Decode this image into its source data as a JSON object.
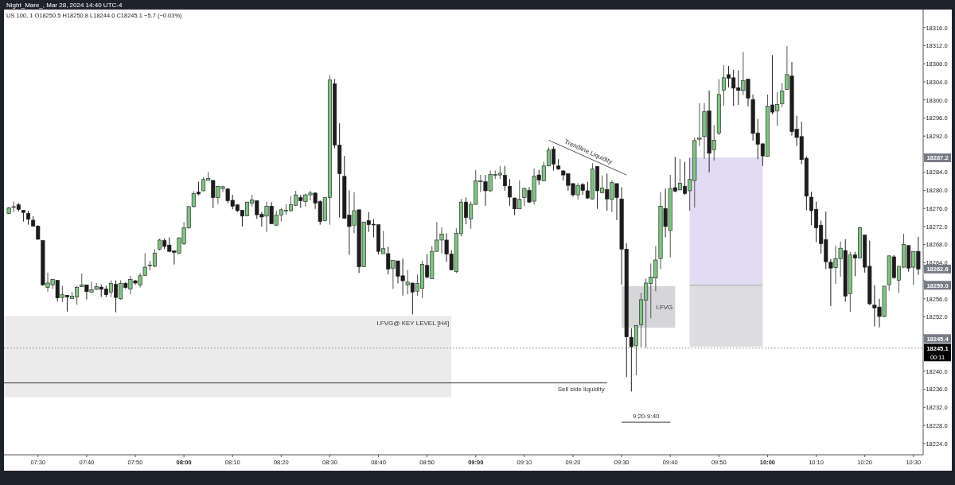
{
  "chart_data": {
    "type": "candlestick",
    "title": "Night_Mare_, Mar 28, 2024 14:40 UTC-4",
    "subtitle": "US 100, 1  O18250.5 H18250.8 L18244.0 C18245.1 −5.7 (−0.03%)",
    "x": [
      "2024-03-28T07:24",
      "2024-03-28T07:25",
      "2024-03-28T07:26",
      "2024-03-28T07:27",
      "2024-03-28T07:28",
      "2024-03-28T07:29",
      "2024-03-28T07:30",
      "2024-03-28T07:31",
      "2024-03-28T07:32",
      "2024-03-28T07:33",
      "2024-03-28T07:34",
      "2024-03-28T07:35",
      "2024-03-28T07:36",
      "2024-03-28T07:37",
      "2024-03-28T07:38",
      "2024-03-28T07:39",
      "2024-03-28T07:40",
      "2024-03-28T07:41",
      "2024-03-28T07:42",
      "2024-03-28T07:43",
      "2024-03-28T07:44",
      "2024-03-28T07:45",
      "2024-03-28T07:46",
      "2024-03-28T07:47",
      "2024-03-28T07:48",
      "2024-03-28T07:49",
      "2024-03-28T07:50",
      "2024-03-28T07:51",
      "2024-03-28T07:52",
      "2024-03-28T07:53",
      "2024-03-28T07:54",
      "2024-03-28T07:55",
      "2024-03-28T07:56",
      "2024-03-28T07:57",
      "2024-03-28T07:58",
      "2024-03-28T07:59",
      "2024-03-28T08:00",
      "2024-03-28T08:01",
      "2024-03-28T08:02",
      "2024-03-28T08:03",
      "2024-03-28T08:04",
      "2024-03-28T08:05",
      "2024-03-28T08:06",
      "2024-03-28T08:07",
      "2024-03-28T08:08",
      "2024-03-28T08:09",
      "2024-03-28T08:10",
      "2024-03-28T08:11",
      "2024-03-28T08:12",
      "2024-03-28T08:13",
      "2024-03-28T08:14",
      "2024-03-28T08:15",
      "2024-03-28T08:16",
      "2024-03-28T08:17",
      "2024-03-28T08:18",
      "2024-03-28T08:19",
      "2024-03-28T08:20",
      "2024-03-28T08:21",
      "2024-03-28T08:22",
      "2024-03-28T08:23",
      "2024-03-28T08:24",
      "2024-03-28T08:25",
      "2024-03-28T08:26",
      "2024-03-28T08:27",
      "2024-03-28T08:28",
      "2024-03-28T08:29",
      "2024-03-28T08:30",
      "2024-03-28T08:31",
      "2024-03-28T08:32",
      "2024-03-28T08:33",
      "2024-03-28T08:34",
      "2024-03-28T08:35",
      "2024-03-28T08:36",
      "2024-03-28T08:37",
      "2024-03-28T08:38",
      "2024-03-28T08:39",
      "2024-03-28T08:40",
      "2024-03-28T08:41",
      "2024-03-28T08:42",
      "2024-03-28T08:43",
      "2024-03-28T08:44",
      "2024-03-28T08:45",
      "2024-03-28T08:46",
      "2024-03-28T08:47",
      "2024-03-28T08:48",
      "2024-03-28T08:49",
      "2024-03-28T08:50",
      "2024-03-28T08:51",
      "2024-03-28T08:52",
      "2024-03-28T08:53",
      "2024-03-28T08:54",
      "2024-03-28T08:55",
      "2024-03-28T08:56",
      "2024-03-28T08:57",
      "2024-03-28T08:58",
      "2024-03-28T08:59",
      "2024-03-28T09:00",
      "2024-03-28T09:01",
      "2024-03-28T09:02",
      "2024-03-28T09:03",
      "2024-03-28T09:04",
      "2024-03-28T09:05",
      "2024-03-28T09:06",
      "2024-03-28T09:07",
      "2024-03-28T09:08",
      "2024-03-28T09:09",
      "2024-03-28T09:10",
      "2024-03-28T09:11",
      "2024-03-28T09:12",
      "2024-03-28T09:13",
      "2024-03-28T09:14",
      "2024-03-28T09:15",
      "2024-03-28T09:16",
      "2024-03-28T09:17",
      "2024-03-28T09:18",
      "2024-03-28T09:19",
      "2024-03-28T09:20",
      "2024-03-28T09:21",
      "2024-03-28T09:22",
      "2024-03-28T09:23",
      "2024-03-28T09:24",
      "2024-03-28T09:25",
      "2024-03-28T09:26",
      "2024-03-28T09:27",
      "2024-03-28T09:28",
      "2024-03-28T09:29",
      "2024-03-28T09:30",
      "2024-03-28T09:31",
      "2024-03-28T09:32",
      "2024-03-28T09:33",
      "2024-03-28T09:34",
      "2024-03-28T09:35",
      "2024-03-28T09:36",
      "2024-03-28T09:37",
      "2024-03-28T09:38",
      "2024-03-28T09:39",
      "2024-03-28T09:40",
      "2024-03-28T09:41",
      "2024-03-28T09:42",
      "2024-03-28T09:43",
      "2024-03-28T09:44",
      "2024-03-28T09:45",
      "2024-03-28T09:46",
      "2024-03-28T09:47",
      "2024-03-28T09:48",
      "2024-03-28T09:49",
      "2024-03-28T09:50",
      "2024-03-28T09:51",
      "2024-03-28T09:52",
      "2024-03-28T09:53",
      "2024-03-28T09:54",
      "2024-03-28T09:55",
      "2024-03-28T09:56",
      "2024-03-28T09:57",
      "2024-03-28T09:58",
      "2024-03-28T09:59",
      "2024-03-28T10:00",
      "2024-03-28T10:01",
      "2024-03-28T10:02",
      "2024-03-28T10:03",
      "2024-03-28T10:04",
      "2024-03-28T10:05",
      "2024-03-28T10:06",
      "2024-03-28T10:07",
      "2024-03-28T10:08",
      "2024-03-28T10:09",
      "2024-03-28T10:10",
      "2024-03-28T10:11",
      "2024-03-28T10:12",
      "2024-03-28T10:13",
      "2024-03-28T10:14",
      "2024-03-28T10:15",
      "2024-03-28T10:16",
      "2024-03-28T10:17",
      "2024-03-28T10:18",
      "2024-03-28T10:19",
      "2024-03-28T10:20",
      "2024-03-28T10:21",
      "2024-03-28T10:22",
      "2024-03-28T10:23",
      "2024-03-28T10:24",
      "2024-03-28T10:25",
      "2024-03-28T10:26",
      "2024-03-28T10:27",
      "2024-03-28T10:28",
      "2024-03-28T10:29",
      "2024-03-28T10:30",
      "2024-03-28T10:31"
    ],
    "ohlc": [
      [
        18274.9,
        18276.4,
        18274.7,
        18276.1
      ],
      [
        18276.4,
        18277.5,
        18275.2,
        18276.4
      ],
      [
        18276.8,
        18277.2,
        18275.3,
        18275.8
      ],
      [
        18275.6,
        18275.6,
        18273.1,
        18275.1
      ],
      [
        18274.9,
        18275.5,
        18272.4,
        18273.6
      ],
      [
        18273.4,
        18274.3,
        18272.0,
        18272.1
      ],
      [
        18272.1,
        18272.3,
        18269.0,
        18269.2
      ],
      [
        18268.9,
        18268.9,
        18258.9,
        18259.1
      ],
      [
        18258.5,
        18261.8,
        18257.6,
        18259.5
      ],
      [
        18259.1,
        18260.4,
        18258.2,
        18260.3
      ],
      [
        18260.1,
        18260.1,
        18255.4,
        18256.2
      ],
      [
        18256.3,
        18258.9,
        18255.3,
        18256.9
      ],
      [
        18256.8,
        18256.8,
        18253.2,
        18256.4
      ],
      [
        18256.1,
        18257.5,
        18256.0,
        18256.6
      ],
      [
        18256.4,
        18258.9,
        18254.7,
        18258.5
      ],
      [
        18258.7,
        18261.6,
        18258.7,
        18259.1
      ],
      [
        18259.1,
        18259.1,
        18255.9,
        18257.6
      ],
      [
        18257.5,
        18259.8,
        18257.3,
        18258.0
      ],
      [
        18258.1,
        18259.5,
        18257.9,
        18258.7
      ],
      [
        18258.6,
        18259.1,
        18256.4,
        18258.1
      ],
      [
        18258.2,
        18258.9,
        18256.4,
        18256.9
      ],
      [
        18257.5,
        18260.1,
        18256.4,
        18259.4
      ],
      [
        18259.2,
        18260.1,
        18253.0,
        18256.3
      ],
      [
        18256.0,
        18260.1,
        18255.8,
        18259.4
      ],
      [
        18259.4,
        18259.7,
        18258.2,
        18258.5
      ],
      [
        18258.2,
        18261.1,
        18257.0,
        18260.3
      ],
      [
        18260.0,
        18260.2,
        18259.1,
        18259.5
      ],
      [
        18259.1,
        18261.7,
        18258.5,
        18261.1
      ],
      [
        18261.2,
        18266.1,
        18261.1,
        18263.0
      ],
      [
        18263.4,
        18264.4,
        18262.3,
        18263.5
      ],
      [
        18263.2,
        18267.0,
        18263.0,
        18266.1
      ],
      [
        18267.0,
        18269.3,
        18266.7,
        18269.0
      ],
      [
        18268.9,
        18269.4,
        18267.0,
        18267.6
      ],
      [
        18267.9,
        18269.6,
        18266.3,
        18266.5
      ],
      [
        18266.6,
        18266.6,
        18263.6,
        18266.3
      ],
      [
        18266.1,
        18269.6,
        18265.9,
        18269.5
      ],
      [
        18268.2,
        18273.0,
        18267.9,
        18271.7
      ],
      [
        18271.7,
        18276.5,
        18271.5,
        18276.4
      ],
      [
        18276.4,
        18279.8,
        18276.2,
        18279.3
      ],
      [
        18279.6,
        18281.9,
        18278.9,
        18279.2
      ],
      [
        18279.9,
        18282.9,
        18279.8,
        18282.4
      ],
      [
        18282.2,
        18284.1,
        18282.2,
        18282.6
      ],
      [
        18282.2,
        18282.2,
        18276.1,
        18278.4
      ],
      [
        18278.4,
        18281.0,
        18277.0,
        18280.9
      ],
      [
        18280.4,
        18281.0,
        18279.6,
        18280.8
      ],
      [
        18280.3,
        18280.5,
        18277.2,
        18277.7
      ],
      [
        18277.8,
        18279.0,
        18275.8,
        18276.5
      ],
      [
        18276.8,
        18276.9,
        18275.2,
        18275.5
      ],
      [
        18275.6,
        18275.6,
        18272.0,
        18274.3
      ],
      [
        18274.4,
        18277.5,
        18274.3,
        18277.4
      ],
      [
        18277.2,
        18279.0,
        18276.4,
        18277.9
      ],
      [
        18277.7,
        18277.8,
        18273.7,
        18274.6
      ],
      [
        18274.7,
        18275.2,
        18272.0,
        18274.1
      ],
      [
        18274.3,
        18277.5,
        18270.8,
        18276.5
      ],
      [
        18276.5,
        18277.4,
        18272.6,
        18272.6
      ],
      [
        18272.3,
        18275.5,
        18272.1,
        18274.5
      ],
      [
        18274.5,
        18276.1,
        18273.1,
        18275.7
      ],
      [
        18275.6,
        18276.9,
        18274.6,
        18275.6
      ],
      [
        18275.5,
        18278.7,
        18275.3,
        18276.8
      ],
      [
        18276.7,
        18279.9,
        18276.5,
        18279.0
      ],
      [
        18278.4,
        18279.0,
        18276.1,
        18277.7
      ],
      [
        18277.5,
        18279.3,
        18276.4,
        18279.0
      ],
      [
        18279.0,
        18279.9,
        18277.8,
        18279.4
      ],
      [
        18279.4,
        18279.6,
        18275.9,
        18277.2
      ],
      [
        18277.5,
        18277.8,
        18272.4,
        18273.1
      ],
      [
        18273.3,
        18278.4,
        18273.1,
        18278.4
      ],
      [
        18278.4,
        18305.5,
        18272.4,
        18304.4
      ],
      [
        18303.6,
        18304.6,
        18289.3,
        18290.0
      ],
      [
        18290.0,
        18294.8,
        18274.0,
        18283.7
      ],
      [
        18283.1,
        18287.6,
        18273.8,
        18273.8
      ],
      [
        18274.5,
        18280.0,
        18265.7,
        18272.0
      ],
      [
        18272.3,
        18279.6,
        18270.5,
        18275.5
      ],
      [
        18275.7,
        18275.7,
        18261.7,
        18263.1
      ],
      [
        18263.1,
        18273.0,
        18263.0,
        18273.0
      ],
      [
        18273.3,
        18275.2,
        18270.8,
        18272.4
      ],
      [
        18272.5,
        18273.6,
        18269.6,
        18272.4
      ],
      [
        18272.4,
        18272.4,
        18265.8,
        18266.5
      ],
      [
        18266.0,
        18271.0,
        18266.0,
        18267.1
      ],
      [
        18266.0,
        18267.5,
        18261.4,
        18262.6
      ],
      [
        18262.8,
        18264.6,
        18258.2,
        18264.5
      ],
      [
        18264.4,
        18264.4,
        18259.4,
        18261.0
      ],
      [
        18261.1,
        18264.9,
        18256.7,
        18260.0
      ],
      [
        18259.1,
        18262.4,
        18257.0,
        18259.7
      ],
      [
        18259.5,
        18259.5,
        18252.6,
        18257.5
      ],
      [
        18257.7,
        18261.4,
        18256.7,
        18259.4
      ],
      [
        18258.3,
        18264.4,
        18256.1,
        18263.6
      ],
      [
        18263.4,
        18265.9,
        18260.5,
        18260.8
      ],
      [
        18260.5,
        18267.7,
        18260.4,
        18266.5
      ],
      [
        18266.5,
        18273.0,
        18266.4,
        18269.0
      ],
      [
        18269.0,
        18271.8,
        18266.1,
        18270.3
      ],
      [
        18269.0,
        18270.5,
        18264.2,
        18265.9
      ],
      [
        18265.9,
        18266.7,
        18262.3,
        18262.4
      ],
      [
        18262.0,
        18271.6,
        18261.7,
        18270.5
      ],
      [
        18270.4,
        18278.1,
        18269.8,
        18277.4
      ],
      [
        18277.4,
        18278.4,
        18272.5,
        18274.0
      ],
      [
        18273.7,
        18277.5,
        18271.5,
        18276.9
      ],
      [
        18276.9,
        18284.5,
        18276.8,
        18282.1
      ],
      [
        18282.0,
        18283.4,
        18279.6,
        18282.1
      ],
      [
        18281.9,
        18283.4,
        18276.6,
        18279.9
      ],
      [
        18279.9,
        18284.4,
        18279.6,
        18283.5
      ],
      [
        18283.5,
        18284.4,
        18282.5,
        18283.5
      ],
      [
        18283.4,
        18285.4,
        18282.5,
        18283.8
      ],
      [
        18283.3,
        18285.4,
        18279.9,
        18281.0
      ],
      [
        18280.9,
        18282.5,
        18276.6,
        18278.5
      ],
      [
        18278.3,
        18278.4,
        18274.5,
        18275.9
      ],
      [
        18275.9,
        18282.2,
        18275.9,
        18278.0
      ],
      [
        18278.4,
        18280.7,
        18276.5,
        18280.4
      ],
      [
        18280.0,
        18280.7,
        18277.2,
        18277.4
      ],
      [
        18277.6,
        18284.8,
        18276.9,
        18283.1
      ],
      [
        18283.4,
        18284.5,
        18281.2,
        18282.3
      ],
      [
        18282.1,
        18286.3,
        18282.1,
        18285.4
      ],
      [
        18285.4,
        18289.5,
        18285.3,
        18288.9
      ],
      [
        18289.1,
        18289.7,
        18284.4,
        18285.8
      ],
      [
        18285.4,
        18286.9,
        18284.5,
        18284.7
      ],
      [
        18284.3,
        18284.5,
        18282.2,
        18283.4
      ],
      [
        18283.7,
        18283.7,
        18279.9,
        18281.1
      ],
      [
        18281.5,
        18281.5,
        18278.6,
        18279.0
      ],
      [
        18279.0,
        18281.6,
        18278.0,
        18281.1
      ],
      [
        18281.3,
        18281.6,
        18279.0,
        18280.0
      ],
      [
        18279.9,
        18281.9,
        18278.1,
        18278.3
      ],
      [
        18278.1,
        18286.0,
        18278.0,
        18284.7
      ],
      [
        18285.3,
        18285.3,
        18275.9,
        18279.9
      ],
      [
        18279.5,
        18283.3,
        18279.3,
        18280.5
      ],
      [
        18280.2,
        18283.7,
        18275.5,
        18278.1
      ],
      [
        18278.0,
        18282.2,
        18275.2,
        18281.7
      ],
      [
        18281.5,
        18281.5,
        18273.4,
        18278.4
      ],
      [
        18278.1,
        18280.7,
        18259.1,
        18267.0
      ],
      [
        18267.0,
        18268.3,
        18238.7,
        18247.6
      ],
      [
        18247.5,
        18249.5,
        18235.5,
        18245.4
      ],
      [
        18245.6,
        18250.1,
        18239.1,
        18250.1
      ],
      [
        18250.3,
        18257.3,
        18245.3,
        18255.8
      ],
      [
        18255.7,
        18260.5,
        18245.2,
        18259.5
      ],
      [
        18259.4,
        18263.8,
        18251.7,
        18260.8
      ],
      [
        18260.6,
        18267.7,
        18257.7,
        18264.6
      ],
      [
        18264.9,
        18279.6,
        18262.6,
        18276.5
      ],
      [
        18276.0,
        18280.4,
        18269.6,
        18272.0
      ],
      [
        18271.1,
        18283.4,
        18265.2,
        18280.4
      ],
      [
        18280.6,
        18287.4,
        18279.6,
        18279.8
      ],
      [
        18280.1,
        18286.9,
        18280.0,
        18281.6
      ],
      [
        18280.9,
        18286.3,
        18279.0,
        18279.3
      ],
      [
        18279.9,
        18287.2,
        18275.5,
        18282.4
      ],
      [
        18282.2,
        18291.7,
        18276.2,
        18291.0
      ],
      [
        18291.3,
        18299.3,
        18289.8,
        18291.6
      ],
      [
        18291.9,
        18299.3,
        18287.0,
        18297.4
      ],
      [
        18297.6,
        18302.1,
        18284.0,
        18288.2
      ],
      [
        18289.0,
        18294.4,
        18286.6,
        18291.1
      ],
      [
        18292.7,
        18304.6,
        18292.2,
        18301.2
      ],
      [
        18302.2,
        18307.7,
        18298.7,
        18304.9
      ],
      [
        18305.6,
        18307.5,
        18302.8,
        18304.8
      ],
      [
        18304.9,
        18306.7,
        18298.7,
        18302.6
      ],
      [
        18302.7,
        18306.5,
        18298.9,
        18302.1
      ],
      [
        18302.1,
        18310.6,
        18301.1,
        18304.3
      ],
      [
        18304.6,
        18304.6,
        18298.6,
        18300.4
      ],
      [
        18300.1,
        18301.2,
        18291.0,
        18292.6
      ],
      [
        18292.7,
        18295.8,
        18286.9,
        18290.2
      ],
      [
        18290.3,
        18290.3,
        18285.4,
        18287.6
      ],
      [
        18287.5,
        18301.2,
        18287.5,
        18298.6
      ],
      [
        18298.9,
        18309.9,
        18296.8,
        18297.3
      ],
      [
        18297.6,
        18301.7,
        18294.3,
        18299.0
      ],
      [
        18299.2,
        18303.7,
        18298.4,
        18302.0
      ],
      [
        18302.3,
        18311.9,
        18302.3,
        18305.6
      ],
      [
        18305.3,
        18308.4,
        18292.1,
        18293.0
      ],
      [
        18293.5,
        18296.5,
        18289.8,
        18291.7
      ],
      [
        18291.9,
        18295.2,
        18285.8,
        18286.8
      ],
      [
        18287.1,
        18287.5,
        18275.6,
        18278.7
      ],
      [
        18278.5,
        18279.7,
        18272.3,
        18275.5
      ],
      [
        18275.8,
        18277.5,
        18268.6,
        18271.7
      ],
      [
        18272.3,
        18273.3,
        18266.0,
        18268.2
      ],
      [
        18269.1,
        18275.3,
        18262.6,
        18264.2
      ],
      [
        18264.1,
        18264.8,
        18254.4,
        18262.8
      ],
      [
        18262.9,
        18267.8,
        18259.3,
        18264.9
      ],
      [
        18264.9,
        18268.7,
        18260.9,
        18267.2
      ],
      [
        18266.7,
        18269.2,
        18255.4,
        18256.6
      ],
      [
        18257.1,
        18266.4,
        18253.1,
        18265.7
      ],
      [
        18265.7,
        18266.4,
        18261.0,
        18265.0
      ],
      [
        18265.0,
        18272.0,
        18265.0,
        18271.7
      ],
      [
        18270.1,
        18270.1,
        18261.8,
        18263.0
      ],
      [
        18263.2,
        18268.9,
        18254.6,
        18254.9
      ],
      [
        18254.6,
        18259.0,
        18249.9,
        18254.0
      ],
      [
        18254.2,
        18256.0,
        18249.7,
        18252.1
      ],
      [
        18252.1,
        18258.8,
        18251.9,
        18258.8
      ],
      [
        18259.1,
        18265.6,
        18257.8,
        18265.5
      ],
      [
        18265.3,
        18265.7,
        18260.4,
        18260.7
      ],
      [
        18260.1,
        18263.2,
        18257.3,
        18263.2
      ],
      [
        18263.0,
        18270.4,
        18262.9,
        18268.0
      ],
      [
        18267.8,
        18267.8,
        18262.0,
        18262.8
      ],
      [
        18263.0,
        18266.5,
        18259.1,
        18266.5
      ],
      [
        18266.5,
        18269.7,
        18261.3,
        18262.6
      ]
    ],
    "series": [
      {
        "type": "line",
        "name": "I.FVG@ KEY LEVEL [H4]",
        "x": [
          "2024-03-28T07:23",
          "2024-03-28T08:55"
        ],
        "values": [
          18252.1,
          18252.1
        ],
        "upper": [
          18252.1,
          18252.1
        ],
        "lower": [
          18234.2,
          18234.2
        ],
        "color": "#ebebeb"
      },
      {
        "type": "line",
        "name": "I.FVG",
        "x": [
          "2024-03-28T09:30",
          "2024-03-28T09:41"
        ],
        "values": [
          18258.7,
          18258.7
        ],
        "upper": [
          18258.7,
          18258.7
        ],
        "lower": [
          18249.6,
          18249.6
        ],
        "color": "#d6d6d9"
      },
      {
        "type": "line",
        "x": [
          "2024-03-28T09:44",
          "2024-03-28T09:59"
        ],
        "values": [
          18287.2,
          18287.2
        ],
        "upper": [
          18287.2,
          18287.2
        ],
        "lower": [
          18259.0,
          18259.0
        ],
        "color": "#e1dbf3"
      },
      {
        "type": "line",
        "x": [
          "2024-03-28T09:44",
          "2024-03-28T09:59"
        ],
        "values": [
          18259.0,
          18259.0
        ],
        "upper": [
          18259.0,
          18259.0
        ],
        "lower": [
          18245.4,
          18245.4
        ],
        "color": "#a9a9b0"
      },
      {
        "type": "line",
        "name": "Trendline Liquidity",
        "x": [
          "2024-03-28T09:15",
          "2024-03-28T09:31"
        ],
        "values": [
          18291.1,
          18283.4
        ],
        "color": "#555555"
      },
      {
        "type": "line",
        "name": "Sell side liquidity",
        "x": [
          "2024-03-28T07:23",
          "2024-03-28T09:27"
        ],
        "values": [
          18237.4,
          18237.4
        ],
        "color": "#333333"
      },
      {
        "type": "line",
        "name": "9:20-9:40",
        "x": [
          "2024-03-28T09:30",
          "2024-03-28T09:40"
        ],
        "values": [
          18228.7,
          18228.7
        ],
        "color": "#333333"
      }
    ],
    "xlim": [
      "2024-03-28T07:23",
      "2024-03-28T10:32"
    ],
    "xticks": [
      {
        "value": "2024-03-28T07:30",
        "label": "07:30"
      },
      {
        "value": "2024-03-28T07:40",
        "label": "07:40"
      },
      {
        "value": "2024-03-28T07:50",
        "label": "07:50"
      },
      {
        "value": "2024-03-28T08:00",
        "label": "08:00"
      },
      {
        "value": "2024-03-28T08:10",
        "label": "08:10"
      },
      {
        "value": "2024-03-28T08:20",
        "label": "08:20"
      },
      {
        "value": "2024-03-28T08:30",
        "label": "08:30"
      },
      {
        "value": "2024-03-28T08:40",
        "label": "08:40"
      },
      {
        "value": "2024-03-28T08:50",
        "label": "08:50"
      },
      {
        "value": "2024-03-28T09:00",
        "label": "09:00"
      },
      {
        "value": "2024-03-28T09:10",
        "label": "09:10"
      },
      {
        "value": "2024-03-28T09:20",
        "label": "09:20"
      },
      {
        "value": "2024-03-28T09:30",
        "label": "09:30"
      },
      {
        "value": "2024-03-28T09:40",
        "label": "09:40"
      },
      {
        "value": "2024-03-28T09:50",
        "label": "09:50"
      },
      {
        "value": "2024-03-28T10:00",
        "label": "10:00"
      },
      {
        "value": "2024-03-28T10:10",
        "label": "10:10"
      },
      {
        "value": "2024-03-28T10:20",
        "label": "10:20"
      },
      {
        "value": "2024-03-28T10:30",
        "label": "10:30"
      }
    ],
    "ylim": [
      18221.5,
      18320
    ],
    "yticks": [
      {
        "value": 18224,
        "label": "18224.0"
      },
      {
        "value": 18228,
        "label": "18228.0"
      },
      {
        "value": 18232,
        "label": "18232.0"
      },
      {
        "value": 18236,
        "label": "18236.0"
      },
      {
        "value": 18240,
        "label": "18240.0"
      },
      {
        "value": 18248,
        "label": null
      },
      {
        "value": 18252,
        "label": "18252.0"
      },
      {
        "value": 18256,
        "label": "18256.0"
      },
      {
        "value": 18260,
        "label": null
      },
      {
        "value": 18264,
        "label": "18264.0"
      },
      {
        "value": 18268,
        "label": "18268.0"
      },
      {
        "value": 18272,
        "label": "18272.0"
      },
      {
        "value": 18276,
        "label": "18276.0"
      },
      {
        "value": 18280,
        "label": "18280.0"
      },
      {
        "value": 18284,
        "label": "18284.0"
      },
      {
        "value": 18288,
        "label": null
      },
      {
        "value": 18292,
        "label": "18292.0"
      },
      {
        "value": 18296,
        "label": "18296.0"
      },
      {
        "value": 18300,
        "label": "18300.0"
      },
      {
        "value": 18304,
        "label": "18304.0"
      },
      {
        "value": 18308,
        "label": "18308.0"
      },
      {
        "value": 18312,
        "label": "18312.0"
      },
      {
        "value": 18316,
        "label": "18316.0"
      }
    ],
    "ref_lines": [
      {
        "axis": "y",
        "value": 18245.1,
        "label": "18245.1",
        "color": "#888888",
        "line_style": "dotted"
      }
    ],
    "annotations": [
      {
        "text": "18287.2",
        "y": 18287.2
      },
      {
        "text": "18262.6",
        "y": 18262.6
      },
      {
        "text": "18259.0",
        "y": 18259.0
      },
      "18245.4",
      "00:11"
    ]
  }
}
